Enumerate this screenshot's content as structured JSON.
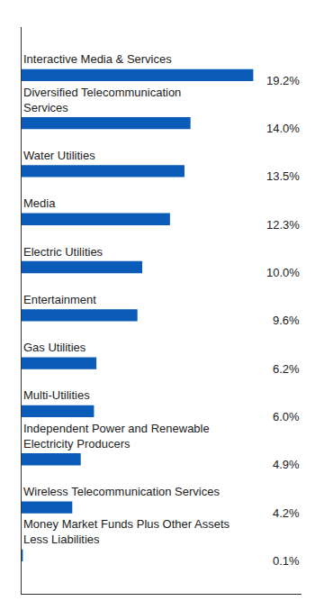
{
  "chart_data": {
    "type": "bar",
    "orientation": "horizontal",
    "categories": [
      "Interactive Media & Services",
      "Diversified Telecommunication Services",
      "Water Utilities",
      "Media",
      "Electric Utilities",
      "Entertainment",
      "Gas Utilities",
      "Multi-Utilities",
      "Independent Power and Renewable Electricity Producers",
      "Wireless Telecommunication Services",
      "Money Market Funds Plus Other Assets Less Liabilities"
    ],
    "values": [
      19.2,
      14.0,
      13.5,
      12.3,
      10.0,
      9.6,
      6.2,
      6.0,
      4.9,
      4.2,
      0.1
    ],
    "value_labels": [
      "19.2%",
      "14.0%",
      "13.5%",
      "12.3%",
      "10.0%",
      "9.6%",
      "6.2%",
      "6.0%",
      "4.9%",
      "4.2%",
      "0.1%"
    ],
    "color": "#0a5cb8",
    "xlim": [
      0,
      23.2
    ],
    "data_labels": true,
    "tick_labels": false,
    "grid": false
  }
}
